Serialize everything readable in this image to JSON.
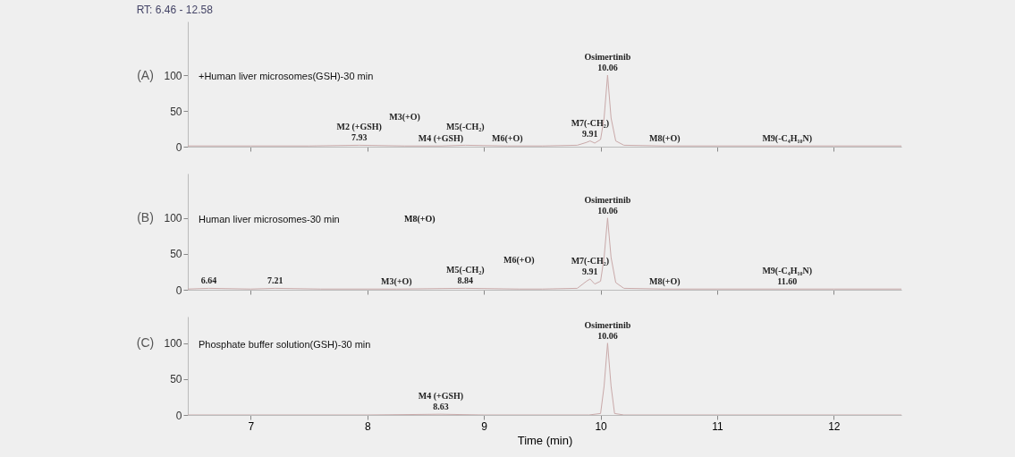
{
  "chart_data": [
    {
      "type": "line",
      "title": "RT: 6.46 - 12.58",
      "ylabel": "(A)",
      "color": "#c9a9a9",
      "x": [
        6.46,
        7.0,
        7.5,
        7.93,
        8.32,
        8.63,
        8.84,
        9.2,
        9.5,
        9.8,
        9.88,
        9.91,
        9.95,
        10.0,
        10.03,
        10.06,
        10.09,
        10.13,
        10.2,
        10.55,
        11.0,
        11.6,
        12.0,
        12.58
      ],
      "values": [
        1,
        1,
        1,
        2,
        1,
        1,
        2,
        1,
        1,
        2,
        6,
        8,
        5,
        10,
        40,
        100,
        40,
        8,
        2,
        1,
        1,
        1,
        1,
        1
      ],
      "xlim": [
        6.46,
        12.58
      ],
      "xticks": [
        7,
        8,
        9,
        10,
        11,
        12
      ],
      "ylim": [
        0,
        175
      ],
      "yticks": [
        0,
        50,
        100
      ],
      "tick_labels": "y",
      "annotations": [
        "+Human liver microsomes(GSH)-30 min",
        {
          "text": "M2 (+GSH)",
          "x": 7.93,
          "y": 2
        },
        {
          "text": "7.93",
          "x": 7.93,
          "y": 2
        },
        {
          "text": "M3(+O)",
          "x": 8.32,
          "y": 1
        },
        {
          "text": "M4 (+GSH)",
          "x": 8.63,
          "y": 1
        },
        {
          "text": "M5(-CH₂)",
          "x": 8.84,
          "y": 2
        },
        {
          "text": "M6(+O)",
          "x": 9.2,
          "y": 1
        },
        {
          "text": "M7(-CH₂)",
          "x": 9.91,
          "y": 8
        },
        {
          "text": "9.91",
          "x": 9.91,
          "y": 8
        },
        {
          "text": "Osimertinib",
          "x": 10.06,
          "y": 100
        },
        {
          "text": "10.06",
          "x": 10.06,
          "y": 100
        },
        {
          "text": "M8(+O)",
          "x": 10.55,
          "y": 1
        },
        {
          "text": "M9(-C₄H₁₀N)",
          "x": 11.6,
          "y": 1
        }
      ]
    },
    {
      "type": "line",
      "ylabel": "(B)",
      "color": "#c9a9a9",
      "x": [
        6.46,
        6.64,
        7.0,
        7.21,
        7.6,
        8.25,
        8.84,
        9.3,
        9.5,
        9.8,
        9.88,
        9.91,
        9.95,
        10.0,
        10.03,
        10.06,
        10.09,
        10.13,
        10.2,
        10.55,
        11.0,
        11.6,
        12.0,
        12.58
      ],
      "values": [
        1,
        2,
        1,
        2,
        1,
        1,
        2,
        1,
        1,
        2,
        12,
        15,
        8,
        12,
        45,
        100,
        45,
        10,
        2,
        1,
        1,
        1,
        1,
        1
      ],
      "xlim": [
        6.46,
        12.58
      ],
      "xticks": [
        7,
        8,
        9,
        10,
        11,
        12
      ],
      "ylim": [
        0,
        162
      ],
      "yticks": [
        0,
        50,
        100
      ],
      "tick_labels": "y",
      "annotations": [
        "Human liver microsomes-30 min",
        "M8(+O)",
        {
          "text": "6.64",
          "x": 6.64,
          "y": 2
        },
        {
          "text": "7.21",
          "x": 7.21,
          "y": 2
        },
        {
          "text": "M3(+O)",
          "x": 8.25,
          "y": 1
        },
        {
          "text": "M5(-CH₂)",
          "x": 8.84,
          "y": 2
        },
        {
          "text": "8.84",
          "x": 8.84,
          "y": 2
        },
        {
          "text": "M6(+O)",
          "x": 9.3,
          "y": 1
        },
        {
          "text": "M7(-CH₂)",
          "x": 9.91,
          "y": 15
        },
        {
          "text": "9.91",
          "x": 9.91,
          "y": 15
        },
        {
          "text": "Osimertinib",
          "x": 10.06,
          "y": 100
        },
        {
          "text": "10.06",
          "x": 10.06,
          "y": 100
        },
        {
          "text": "M8(+O)",
          "x": 10.55,
          "y": 1
        },
        {
          "text": "M9(-C₄H₁₀N)",
          "x": 11.6,
          "y": 1
        },
        {
          "text": "11.60",
          "x": 11.6,
          "y": 1
        }
      ]
    },
    {
      "type": "line",
      "ylabel": "(C)",
      "xlabel": "Time (min)",
      "color": "#c9a9a9",
      "x": [
        6.46,
        7.0,
        8.0,
        8.63,
        9.0,
        9.9,
        10.0,
        10.03,
        10.06,
        10.09,
        10.12,
        10.2,
        11.0,
        12.0,
        12.58
      ],
      "values": [
        0,
        0,
        0,
        1,
        0,
        0,
        2,
        40,
        100,
        40,
        2,
        0,
        0,
        0,
        0
      ],
      "xlim": [
        6.46,
        12.58
      ],
      "xticks": [
        7,
        8,
        9,
        10,
        11,
        12
      ],
      "ylim": [
        0,
        137
      ],
      "yticks": [
        0,
        50,
        100
      ],
      "annotations": [
        "Phosphate buffer solution(GSH)-30 min",
        {
          "text": "M4 (+GSH)",
          "x": 8.63,
          "y": 1
        },
        {
          "text": "8.63",
          "x": 8.63,
          "y": 1
        },
        {
          "text": "Osimertinib",
          "x": 10.06,
          "y": 100
        },
        {
          "text": "10.06",
          "x": 10.06,
          "y": 100
        }
      ]
    }
  ]
}
